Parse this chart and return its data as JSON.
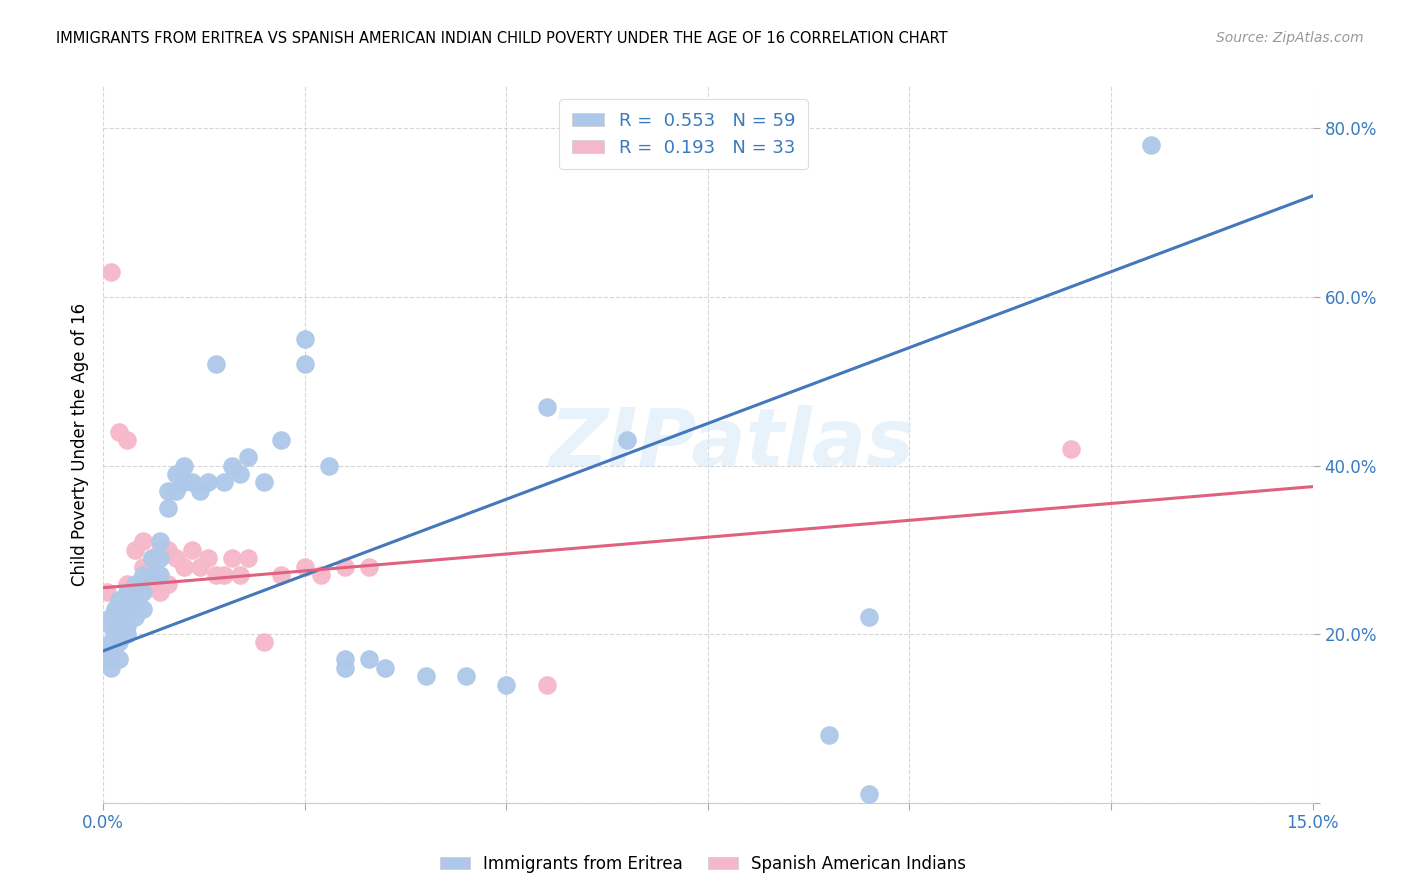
{
  "title": "IMMIGRANTS FROM ERITREA VS SPANISH AMERICAN INDIAN CHILD POVERTY UNDER THE AGE OF 16 CORRELATION CHART",
  "source": "Source: ZipAtlas.com",
  "ylabel": "Child Poverty Under the Age of 16",
  "xlim": [
    0,
    0.15
  ],
  "ylim": [
    0,
    0.85
  ],
  "blue_color": "#adc8e8",
  "pink_color": "#f5b8ca",
  "blue_line_color": "#4477bb",
  "pink_line_color": "#e06080",
  "legend_blue_label": "R =  0.553   N = 59",
  "legend_pink_label": "R =  0.193   N = 33",
  "bottom_legend_blue": "Immigrants from Eritrea",
  "bottom_legend_pink": "Spanish American Indians",
  "watermark": "ZIPatlas",
  "blue_line_x0": 0.0,
  "blue_line_y0": 0.18,
  "blue_line_x1": 0.15,
  "blue_line_y1": 0.72,
  "pink_line_x0": 0.0,
  "pink_line_y0": 0.255,
  "pink_line_x1": 0.15,
  "pink_line_y1": 0.375,
  "blue_x": [
    0.001,
    0.001,
    0.001,
    0.001,
    0.001,
    0.001,
    0.0015,
    0.002,
    0.002,
    0.002,
    0.002,
    0.002,
    0.003,
    0.003,
    0.003,
    0.003,
    0.004,
    0.004,
    0.004,
    0.005,
    0.005,
    0.005,
    0.006,
    0.006,
    0.007,
    0.007,
    0.007,
    0.008,
    0.008,
    0.009,
    0.009,
    0.01,
    0.01,
    0.011,
    0.012,
    0.013,
    0.014,
    0.015,
    0.016,
    0.017,
    0.018,
    0.02,
    0.022,
    0.025,
    0.025,
    0.028,
    0.03,
    0.03,
    0.033,
    0.035,
    0.04,
    0.045,
    0.05,
    0.055,
    0.065,
    0.09,
    0.095,
    0.13,
    0.095
  ],
  "blue_y": [
    0.22,
    0.21,
    0.19,
    0.18,
    0.17,
    0.16,
    0.23,
    0.24,
    0.22,
    0.21,
    0.19,
    0.17,
    0.25,
    0.23,
    0.21,
    0.2,
    0.26,
    0.24,
    0.22,
    0.27,
    0.25,
    0.23,
    0.29,
    0.27,
    0.31,
    0.29,
    0.27,
    0.37,
    0.35,
    0.39,
    0.37,
    0.4,
    0.38,
    0.38,
    0.37,
    0.38,
    0.52,
    0.38,
    0.4,
    0.39,
    0.41,
    0.38,
    0.43,
    0.55,
    0.52,
    0.4,
    0.17,
    0.16,
    0.17,
    0.16,
    0.15,
    0.15,
    0.14,
    0.47,
    0.43,
    0.08,
    0.01,
    0.78,
    0.22
  ],
  "pink_x": [
    0.001,
    0.002,
    0.003,
    0.004,
    0.005,
    0.006,
    0.007,
    0.008,
    0.009,
    0.01,
    0.011,
    0.012,
    0.013,
    0.014,
    0.015,
    0.016,
    0.017,
    0.018,
    0.02,
    0.022,
    0.025,
    0.027,
    0.03,
    0.033,
    0.055,
    0.12,
    0.0005,
    0.003,
    0.004,
    0.005,
    0.006,
    0.007,
    0.008
  ],
  "pink_y": [
    0.63,
    0.44,
    0.43,
    0.3,
    0.31,
    0.29,
    0.3,
    0.3,
    0.29,
    0.28,
    0.3,
    0.28,
    0.29,
    0.27,
    0.27,
    0.29,
    0.27,
    0.29,
    0.19,
    0.27,
    0.28,
    0.27,
    0.28,
    0.28,
    0.14,
    0.42,
    0.25,
    0.26,
    0.25,
    0.28,
    0.26,
    0.25,
    0.26
  ]
}
